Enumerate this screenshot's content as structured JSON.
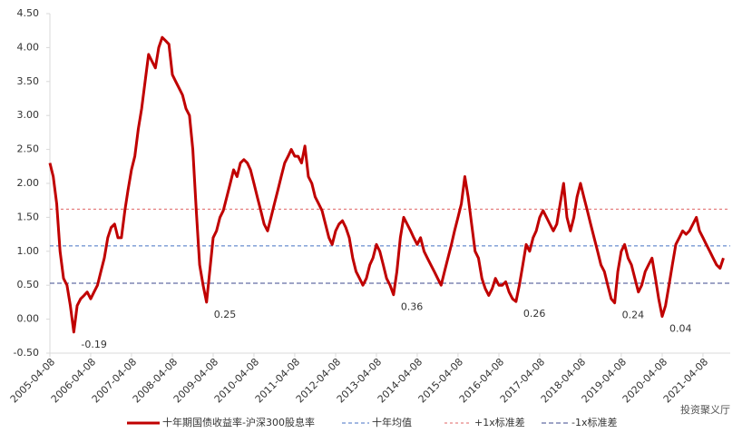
{
  "chart_data": {
    "type": "line",
    "x": [
      "2005-04-08",
      "2005-05-08",
      "2005-06-08",
      "2005-07-08",
      "2005-08-08",
      "2005-09-08",
      "2005-10-08",
      "2005-11-08",
      "2005-12-08",
      "2006-01-08",
      "2006-02-08",
      "2006-03-08",
      "2006-04-08",
      "2006-05-08",
      "2006-06-08",
      "2006-07-08",
      "2006-08-08",
      "2006-09-08",
      "2006-10-08",
      "2006-11-08",
      "2006-12-08",
      "2007-01-08",
      "2007-02-08",
      "2007-03-08",
      "2007-04-08",
      "2007-05-08",
      "2007-06-08",
      "2007-07-08",
      "2007-08-08",
      "2007-09-08",
      "2007-10-08",
      "2007-11-08",
      "2007-12-08",
      "2008-01-08",
      "2008-02-08",
      "2008-03-08",
      "2008-04-08",
      "2008-05-08",
      "2008-06-08",
      "2008-07-08",
      "2008-08-08",
      "2008-09-08",
      "2008-10-08",
      "2008-11-08",
      "2008-12-08",
      "2009-01-08",
      "2009-02-08",
      "2009-03-08",
      "2009-04-08",
      "2009-05-08",
      "2009-06-08",
      "2009-07-08",
      "2009-08-08",
      "2009-09-08",
      "2009-10-08",
      "2009-11-08",
      "2009-12-08",
      "2010-01-08",
      "2010-02-08",
      "2010-03-08",
      "2010-04-08",
      "2010-05-08",
      "2010-06-08",
      "2010-07-08",
      "2010-08-08",
      "2010-09-08",
      "2010-10-08",
      "2010-11-08",
      "2010-12-08",
      "2011-01-08",
      "2011-02-08",
      "2011-03-08",
      "2011-04-08",
      "2011-05-08",
      "2011-06-08",
      "2011-07-08",
      "2011-08-08",
      "2011-09-08",
      "2011-10-08",
      "2011-11-08",
      "2011-12-08",
      "2012-01-08",
      "2012-02-08",
      "2012-03-08",
      "2012-04-08",
      "2012-05-08",
      "2012-06-08",
      "2012-07-08",
      "2012-08-08",
      "2012-09-08",
      "2012-10-08",
      "2012-11-08",
      "2012-12-08",
      "2013-01-08",
      "2013-02-08",
      "2013-03-08",
      "2013-04-08",
      "2013-05-08",
      "2013-06-08",
      "2013-07-08",
      "2013-08-08",
      "2013-09-08",
      "2013-10-08",
      "2013-11-08",
      "2013-12-08",
      "2014-01-08",
      "2014-02-08",
      "2014-03-08",
      "2014-04-08",
      "2014-05-08",
      "2014-06-08",
      "2014-07-08",
      "2014-08-08",
      "2014-09-08",
      "2014-10-08",
      "2014-11-08",
      "2014-12-08",
      "2015-01-08",
      "2015-02-08",
      "2015-03-08",
      "2015-04-08",
      "2015-05-08",
      "2015-06-08",
      "2015-07-08",
      "2015-08-08",
      "2015-09-08",
      "2015-10-08",
      "2015-11-08",
      "2015-12-08",
      "2016-01-08",
      "2016-02-08",
      "2016-03-08",
      "2016-04-08",
      "2016-05-08",
      "2016-06-08",
      "2016-07-08",
      "2016-08-08",
      "2016-09-08",
      "2016-10-08",
      "2016-11-08",
      "2016-12-08",
      "2017-01-08",
      "2017-02-08",
      "2017-03-08",
      "2017-04-08",
      "2017-05-08",
      "2017-06-08",
      "2017-07-08",
      "2017-08-08",
      "2017-09-08",
      "2017-10-08",
      "2017-11-08",
      "2017-12-08",
      "2018-01-08",
      "2018-02-08",
      "2018-03-08",
      "2018-04-08",
      "2018-05-08",
      "2018-06-08",
      "2018-07-08",
      "2018-08-08",
      "2018-09-08",
      "2018-10-08",
      "2018-11-08",
      "2018-12-08",
      "2019-01-08",
      "2019-02-08",
      "2019-03-08",
      "2019-04-08",
      "2019-05-08",
      "2019-06-08",
      "2019-07-08",
      "2019-08-08",
      "2019-09-08",
      "2019-10-08",
      "2019-11-08",
      "2019-12-08",
      "2020-01-08",
      "2020-02-08",
      "2020-03-08",
      "2020-04-08",
      "2020-05-08",
      "2020-06-08",
      "2020-07-08",
      "2020-08-08",
      "2020-09-08",
      "2020-10-08",
      "2020-11-08",
      "2020-12-08",
      "2021-01-08",
      "2021-02-08",
      "2021-03-08",
      "2021-04-08",
      "2021-05-08",
      "2021-06-08",
      "2021-07-08",
      "2021-08-08",
      "2021-09-08",
      "2021-10-08"
    ],
    "series": [
      {
        "name": "十年期国债收益率-沪深300股息率",
        "color": "#c00000",
        "values": [
          2.3,
          2.1,
          1.7,
          1.0,
          0.6,
          0.5,
          0.2,
          -0.19,
          0.2,
          0.3,
          0.35,
          0.4,
          0.3,
          0.4,
          0.5,
          0.7,
          0.9,
          1.2,
          1.35,
          1.4,
          1.2,
          1.2,
          1.6,
          1.9,
          2.2,
          2.4,
          2.8,
          3.1,
          3.5,
          3.9,
          3.8,
          3.7,
          4.0,
          4.15,
          4.1,
          4.05,
          3.6,
          3.5,
          3.4,
          3.3,
          3.1,
          3.0,
          2.5,
          1.6,
          0.8,
          0.5,
          0.25,
          0.7,
          1.2,
          1.3,
          1.5,
          1.6,
          1.8,
          2.0,
          2.2,
          2.1,
          2.3,
          2.35,
          2.3,
          2.2,
          2.0,
          1.8,
          1.6,
          1.4,
          1.3,
          1.5,
          1.7,
          1.9,
          2.1,
          2.3,
          2.4,
          2.5,
          2.4,
          2.4,
          2.3,
          2.55,
          2.1,
          2.0,
          1.8,
          1.7,
          1.6,
          1.4,
          1.2,
          1.1,
          1.3,
          1.4,
          1.45,
          1.35,
          1.2,
          0.9,
          0.7,
          0.6,
          0.5,
          0.6,
          0.8,
          0.9,
          1.1,
          1.0,
          0.8,
          0.6,
          0.5,
          0.36,
          0.7,
          1.2,
          1.5,
          1.4,
          1.3,
          1.2,
          1.1,
          1.2,
          1.0,
          0.9,
          0.8,
          0.7,
          0.6,
          0.5,
          0.7,
          0.9,
          1.1,
          1.3,
          1.5,
          1.7,
          2.1,
          1.8,
          1.4,
          1.0,
          0.9,
          0.6,
          0.45,
          0.35,
          0.45,
          0.6,
          0.5,
          0.5,
          0.55,
          0.4,
          0.3,
          0.26,
          0.5,
          0.8,
          1.1,
          1.0,
          1.2,
          1.3,
          1.5,
          1.6,
          1.5,
          1.4,
          1.3,
          1.4,
          1.7,
          2.0,
          1.5,
          1.3,
          1.5,
          1.8,
          2.0,
          1.8,
          1.6,
          1.4,
          1.2,
          1.0,
          0.8,
          0.7,
          0.5,
          0.3,
          0.24,
          0.7,
          1.0,
          1.1,
          0.9,
          0.8,
          0.6,
          0.4,
          0.5,
          0.7,
          0.8,
          0.9,
          0.6,
          0.3,
          0.04,
          0.2,
          0.5,
          0.8,
          1.1,
          1.2,
          1.3,
          1.25,
          1.3,
          1.4,
          1.5,
          1.3,
          1.2,
          1.1,
          1.0,
          0.9,
          0.8,
          0.75,
          0.9
        ]
      }
    ],
    "reference_lines": [
      {
        "name": "十年均值",
        "color": "#4472c4",
        "value": 1.08
      },
      {
        "name": "+1x标准差",
        "color": "#e06666",
        "value": 1.62
      },
      {
        "name": "-1x标准差",
        "color": "#3c4a8c",
        "value": 0.53
      }
    ],
    "annotations": [
      {
        "text": "-0.19",
        "x": "2005-11-08",
        "y": -0.19
      },
      {
        "text": "0.25",
        "x": "2009-02-08",
        "y": 0.25
      },
      {
        "text": "0.36",
        "x": "2013-09-08",
        "y": 0.36
      },
      {
        "text": "0.26",
        "x": "2016-09-08",
        "y": 0.26
      },
      {
        "text": "0.24",
        "x": "2019-02-08",
        "y": 0.24
      },
      {
        "text": "0.04",
        "x": "2020-04-08",
        "y": 0.04
      }
    ],
    "xlim": [
      "2005-04-08",
      "2021-12-08"
    ],
    "xticks": [
      "2005-04-08",
      "2006-04-08",
      "2007-04-08",
      "2008-04-08",
      "2009-04-08",
      "2010-04-08",
      "2011-04-08",
      "2012-04-08",
      "2013-04-08",
      "2014-04-08",
      "2015-04-08",
      "2016-04-08",
      "2017-04-08",
      "2018-04-08",
      "2019-04-08",
      "2020-04-08",
      "2021-04-08"
    ],
    "ylim": [
      -0.5,
      4.5
    ],
    "yticks": [
      {
        "value": -0.5,
        "label": "-0.50"
      },
      {
        "value": 0,
        "label": "0.00"
      },
      {
        "value": 0.5,
        "label": "0.50"
      },
      {
        "value": 1,
        "label": "1.00"
      },
      {
        "value": 1.5,
        "label": "1.50"
      },
      {
        "value": 2,
        "label": "2.00"
      },
      {
        "value": 2.5,
        "label": "2.50"
      },
      {
        "value": 3,
        "label": "3.00"
      },
      {
        "value": 3.5,
        "label": "3.50"
      },
      {
        "value": 4,
        "label": "4.00"
      },
      {
        "value": 4.5,
        "label": "4.50"
      }
    ],
    "grid": false,
    "watermark": "投资聚义厅"
  }
}
